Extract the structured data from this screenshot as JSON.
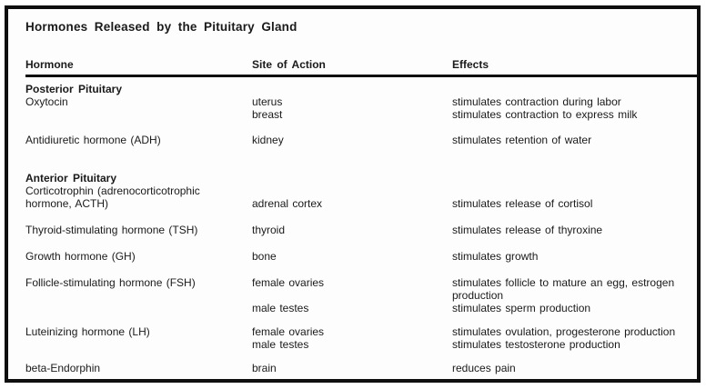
{
  "title": "Hormones Released by the Pituitary Gland",
  "columns": {
    "hormone": "Hormone",
    "site": "Site of Action",
    "effects": "Effects"
  },
  "colors": {
    "text": "#1a1a1a",
    "frame_border": "#0f0f0f",
    "background": "#fdfdfd"
  },
  "sections": [
    {
      "header": "Posterior Pituitary",
      "rows": [
        {
          "lines": [
            {
              "hormone": "Oxytocin",
              "site": "uterus",
              "effects": "stimulates contraction during labor"
            },
            {
              "site": "breast",
              "effects": "stimulates contraction to express milk"
            }
          ]
        },
        {
          "lines": [
            {
              "hormone": "Antidiuretic hormone (ADH)",
              "site": "kidney",
              "effects": "stimulates retention of water"
            }
          ]
        }
      ]
    },
    {
      "header": "Anterior Pituitary",
      "rows": [
        {
          "lines": [
            {
              "hormone": "Corticotrophin (adrenocorticotrophic hormone, ACTH)",
              "site": "adrenal cortex",
              "effects": "stimulates release of cortisol"
            }
          ]
        },
        {
          "lines": [
            {
              "hormone": "Thyroid-stimulating hormone (TSH)",
              "site": "thyroid",
              "effects": "stimulates release of thyroxine"
            }
          ]
        },
        {
          "lines": [
            {
              "hormone": "Growth hormone (GH)",
              "site": "bone",
              "effects": "stimulates growth"
            }
          ]
        },
        {
          "lines": [
            {
              "hormone": "Follicle-stimulating hormone (FSH)",
              "site": "female ovaries",
              "effects": "stimulates follicle to mature an egg, estrogen production"
            },
            {
              "site": "male testes",
              "effects": "stimulates sperm production"
            }
          ]
        },
        {
          "lines": [
            {
              "hormone": "Luteinizing hormone (LH)",
              "site": "female ovaries",
              "effects": "stimulates ovulation, progesterone production"
            },
            {
              "site": "male testes",
              "effects": "stimulates testosterone production"
            }
          ]
        },
        {
          "lines": [
            {
              "hormone": "beta-Endorphin",
              "site": "brain",
              "effects": "reduces pain"
            }
          ]
        }
      ]
    }
  ]
}
